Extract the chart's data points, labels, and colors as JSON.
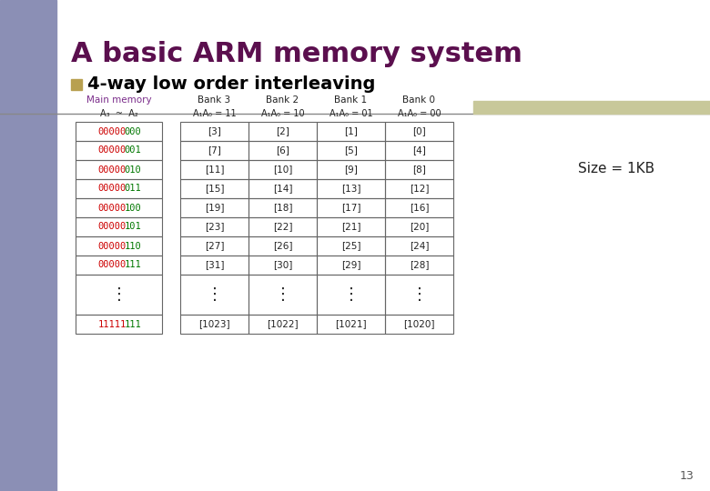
{
  "title": "A basic ARM memory system",
  "subtitle": "4-way low order interleaving",
  "size_label": "Size = 1KB",
  "page_num": "13",
  "title_color": "#5B0F4E",
  "subtitle_color": "#000000",
  "subtitle_bullet_color": "#B8A050",
  "bg_color": "#FFFFFF",
  "left_bar_color": "#8B8FB5",
  "top_bar_color": "#C8C89A",
  "header_mm_color": "#7B2D8B",
  "col_header_1": "Main memory",
  "col_header_2": "Bank 3",
  "col_header_3": "Bank 2",
  "col_header_4": "Bank 1",
  "col_header_5": "Bank 0",
  "subheader_1": "A₃  ~  A₂",
  "subheader_2": "A₁A₀ = 11",
  "subheader_3": "A₁A₀ = 10",
  "subheader_4": "A₁A₀ = 01",
  "subheader_5": "A₁A₀ = 00",
  "mm_addresses": [
    "00000000",
    "00000001",
    "00000010",
    "00000011",
    "00000100",
    "00000101",
    "00000110",
    "00000111"
  ],
  "mm_last": "11111111",
  "bank3_data": [
    "[3]",
    "[7]",
    "[11]",
    "[15]",
    "[19]",
    "[23]",
    "[27]",
    "[31]",
    "[1023]"
  ],
  "bank2_data": [
    "[2]",
    "[6]",
    "[10]",
    "[14]",
    "[18]",
    "[22]",
    "[26]",
    "[30]",
    "[1022]"
  ],
  "bank1_data": [
    "[1]",
    "[5]",
    "[9]",
    "[13]",
    "[17]",
    "[21]",
    "[25]",
    "[29]",
    "[1021]"
  ],
  "bank0_data": [
    "[0]",
    "[4]",
    "[8]",
    "[12]",
    "[16]",
    "[20]",
    "[24]",
    "[28]",
    "[1020]"
  ],
  "green_color": "#007700",
  "red_color": "#CC0000",
  "table_border_color": "#666666",
  "cell_text_color": "#222222",
  "mm_red_chars": 5,
  "mm_green_chars": 3,
  "last_red_chars": 5,
  "last_green_chars": 3
}
